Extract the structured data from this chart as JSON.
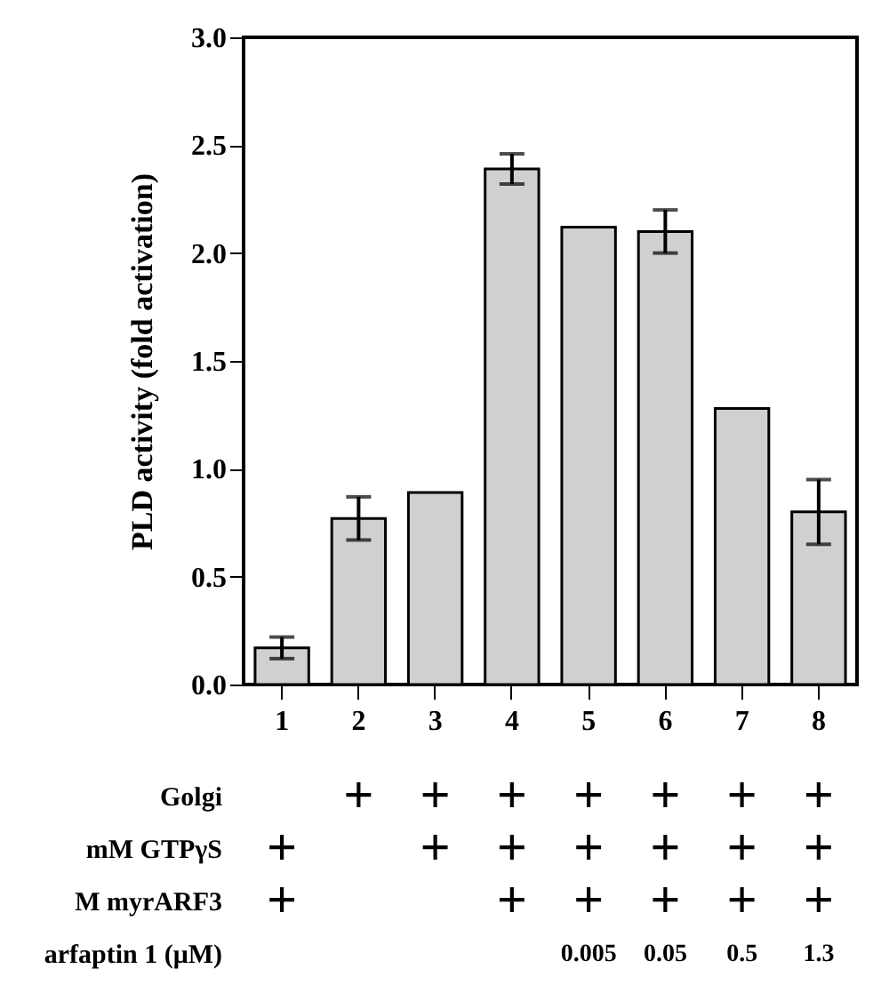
{
  "chart_data": {
    "type": "bar",
    "ylabel": "PLD activity (fold activation)",
    "categories": [
      "1",
      "2",
      "3",
      "4",
      "5",
      "6",
      "7",
      "8"
    ],
    "values": [
      0.17,
      0.77,
      0.89,
      2.39,
      2.12,
      2.1,
      1.28,
      0.8
    ],
    "errors": [
      0.05,
      0.1,
      null,
      0.07,
      null,
      0.1,
      null,
      0.15
    ],
    "color": "#d0d0d0",
    "ylim": [
      0,
      3.0
    ],
    "yticks": [
      {
        "value": 0,
        "label": "0.0"
      },
      0.5,
      {
        "value": 1,
        "label": "1.0"
      },
      1.5,
      {
        "value": 2,
        "label": "2.0"
      },
      2.5,
      {
        "value": 3,
        "label": "3.0"
      }
    ],
    "grid": false,
    "annotations": [
      "Golgi",
      null,
      "+",
      "+",
      "+",
      "+",
      "+",
      "+",
      "+",
      "mM GTPγS",
      "+",
      null,
      "+",
      "+",
      "+",
      "+",
      "+",
      "+",
      "M myrARF3",
      "+",
      null,
      null,
      "+",
      "+",
      "+",
      "+",
      "+",
      "arfaptin 1 (μM)",
      null,
      null,
      null,
      null,
      "0.005",
      "0.05",
      "0.5",
      "1.3"
    ]
  }
}
